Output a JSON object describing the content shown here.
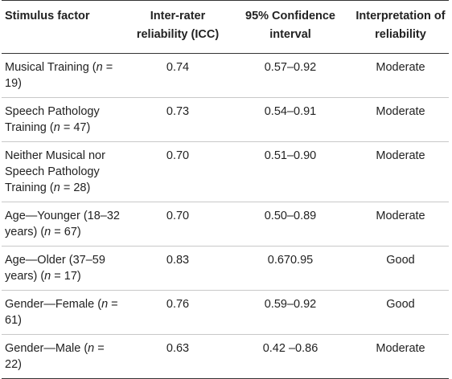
{
  "table": {
    "headers": [
      "Stimulus factor",
      "Inter-rater reliability (ICC)",
      "95% Confidence interval",
      "Interpretation of reliability"
    ],
    "rows": [
      {
        "factor_pre": "Musical Training (",
        "factor_n": "n",
        "factor_post": " = 19)",
        "icc": "0.74",
        "ci": "0.57–0.92",
        "interpretation": "Moderate"
      },
      {
        "factor_pre": "Speech Pathology Training (",
        "factor_n": "n",
        "factor_post": " = 47)",
        "icc": "0.73",
        "ci": "0.54–0.91",
        "interpretation": "Moderate"
      },
      {
        "factor_pre": "Neither Musical nor Speech Pathology Training (",
        "factor_n": "n",
        "factor_post": " = 28)",
        "icc": "0.70",
        "ci": "0.51–0.90",
        "interpretation": "Moderate"
      },
      {
        "factor_pre": "Age—Younger (18–32 years) (",
        "factor_n": "n",
        "factor_post": " = 67)",
        "icc": "0.70",
        "ci": "0.50–0.89",
        "interpretation": "Moderate"
      },
      {
        "factor_pre": "Age—Older (37–59 years) (",
        "factor_n": "n",
        "factor_post": " = 17)",
        "icc": "0.83",
        "ci": "0.670.95",
        "interpretation": "Good"
      },
      {
        "factor_pre": "Gender—Female (",
        "factor_n": "n",
        "factor_post": " = 61)",
        "icc": "0.76",
        "ci": "0.59–0.92",
        "interpretation": "Good"
      },
      {
        "factor_pre": "Gender—Male (",
        "factor_n": "n",
        "factor_post": " = 22)",
        "icc": "0.63",
        "ci": "0.42 –0.86",
        "interpretation": "Moderate"
      }
    ]
  }
}
